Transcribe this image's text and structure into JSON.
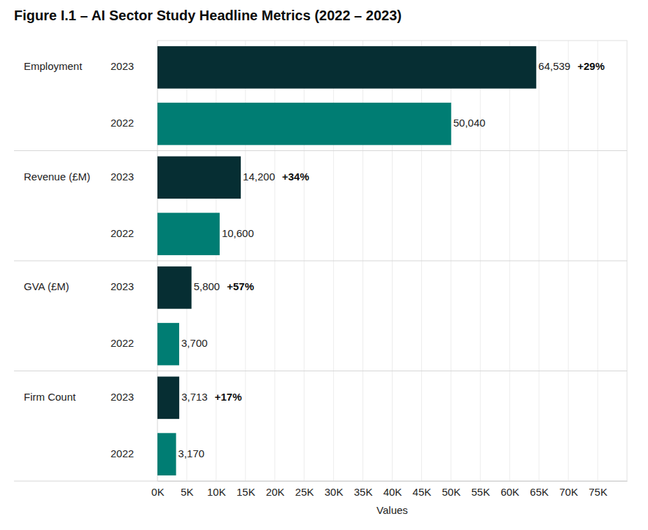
{
  "chart_data": {
    "type": "bar",
    "title": "Figure I.1 – AI Sector Study Headline Metrics (2022 – 2023)",
    "orientation": "horizontal",
    "categories": [
      "Employment",
      "Revenue (£M)",
      "GVA (£M)",
      "Firm Count"
    ],
    "series": [
      {
        "name": "2023",
        "color": "#062e33",
        "values": [
          64539,
          14200,
          5800,
          3713
        ],
        "value_labels": [
          "64,539",
          "14,200",
          "5,800",
          "3,713"
        ]
      },
      {
        "name": "2022",
        "color": "#007d73",
        "values": [
          50040,
          10600,
          3700,
          3170
        ],
        "value_labels": [
          "50,040",
          "10,600",
          "3,700",
          "3,170"
        ]
      }
    ],
    "annotations": [
      "+29%",
      "+34%",
      "+57%",
      "+17%"
    ],
    "xlabel": "Values",
    "xlim": [
      0,
      80000
    ],
    "xticks": [
      {
        "value": 0,
        "label": "0K"
      },
      {
        "value": 5000,
        "label": "5K"
      },
      {
        "value": 10000,
        "label": "10K"
      },
      {
        "value": 15000,
        "label": "15K"
      },
      {
        "value": 20000,
        "label": "20K"
      },
      {
        "value": 25000,
        "label": "25K"
      },
      {
        "value": 30000,
        "label": "30K"
      },
      {
        "value": 35000,
        "label": "35K"
      },
      {
        "value": 40000,
        "label": "40K"
      },
      {
        "value": 45000,
        "label": "45K"
      },
      {
        "value": 50000,
        "label": "50K"
      },
      {
        "value": 55000,
        "label": "55K"
      },
      {
        "value": 60000,
        "label": "60K"
      },
      {
        "value": 65000,
        "label": "65K"
      },
      {
        "value": 70000,
        "label": "70K"
      },
      {
        "value": 75000,
        "label": "75K"
      }
    ],
    "grid": true,
    "data_labels": true
  }
}
